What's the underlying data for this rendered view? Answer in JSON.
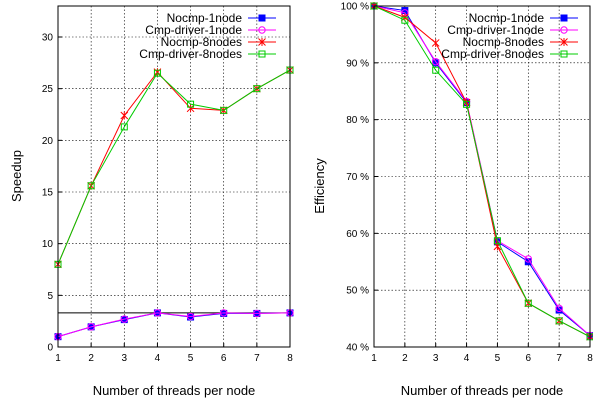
{
  "chart_data": [
    {
      "type": "line",
      "xlabel": "Number of threads per node",
      "ylabel": "Speedup",
      "x": [
        1,
        2,
        3,
        4,
        5,
        6,
        7,
        8
      ],
      "xlim": [
        1,
        8
      ],
      "ylim": [
        0,
        33
      ],
      "yticks": [
        0,
        5,
        10,
        15,
        20,
        25,
        30
      ],
      "ytick_labels": [
        "0",
        "5",
        "10",
        "15",
        "20",
        "25",
        "30"
      ],
      "xtick_labels": [
        "1",
        "2",
        "3",
        "4",
        "5",
        "6",
        "7",
        "8"
      ],
      "grid": true,
      "legend_position": "top-right",
      "reference_line": 3.3,
      "series": [
        {
          "name": "Nocmp-1node",
          "color": "#0000ff",
          "marker": "square-filled",
          "values": [
            1.0,
            1.95,
            2.65,
            3.3,
            2.9,
            3.25,
            3.25,
            3.3
          ]
        },
        {
          "name": "Cmp-driver-1node",
          "color": "#ff00ff",
          "marker": "circle",
          "values": [
            1.0,
            1.95,
            2.7,
            3.3,
            2.95,
            3.3,
            3.25,
            3.3
          ]
        },
        {
          "name": "Nocmp-8nodes",
          "color": "#ff0000",
          "marker": "star",
          "values": [
            8.0,
            15.6,
            22.4,
            26.6,
            23.1,
            22.9,
            25.0,
            26.8
          ]
        },
        {
          "name": "Cmp-driver-8nodes",
          "color": "#00cc00",
          "marker": "square",
          "values": [
            8.0,
            15.6,
            21.3,
            26.5,
            23.5,
            22.9,
            25.0,
            26.8
          ]
        }
      ]
    },
    {
      "type": "line",
      "xlabel": "Number of threads per node",
      "ylabel": "Efficiency",
      "x": [
        1,
        2,
        3,
        4,
        5,
        6,
        7,
        8
      ],
      "xlim": [
        1,
        8
      ],
      "ylim": [
        40,
        100
      ],
      "yticks": [
        40,
        50,
        60,
        70,
        80,
        90,
        100
      ],
      "ytick_labels": [
        "40 %",
        "50 %",
        "60 %",
        "70 %",
        "80 %",
        "90 %",
        "100 %"
      ],
      "xtick_labels": [
        "1",
        "2",
        "3",
        "4",
        "5",
        "6",
        "7",
        "8"
      ],
      "grid": true,
      "legend_position": "top-right",
      "series": [
        {
          "name": "Nocmp-1node",
          "color": "#0000ff",
          "marker": "square-filled",
          "values": [
            100,
            99.2,
            90.0,
            83.0,
            58.5,
            55.0,
            46.5,
            42.0
          ]
        },
        {
          "name": "Cmp-driver-1node",
          "color": "#ff00ff",
          "marker": "circle",
          "values": [
            100,
            98.8,
            90.2,
            83.2,
            58.7,
            55.5,
            46.8,
            42.0
          ]
        },
        {
          "name": "Nocmp-8nodes",
          "color": "#ff0000",
          "marker": "star",
          "values": [
            100,
            98.0,
            93.5,
            83.0,
            57.7,
            47.7,
            44.6,
            41.8
          ]
        },
        {
          "name": "Cmp-driver-8nodes",
          "color": "#00cc00",
          "marker": "square",
          "values": [
            100,
            97.5,
            88.7,
            82.7,
            58.7,
            47.7,
            44.6,
            41.8
          ]
        }
      ]
    }
  ]
}
